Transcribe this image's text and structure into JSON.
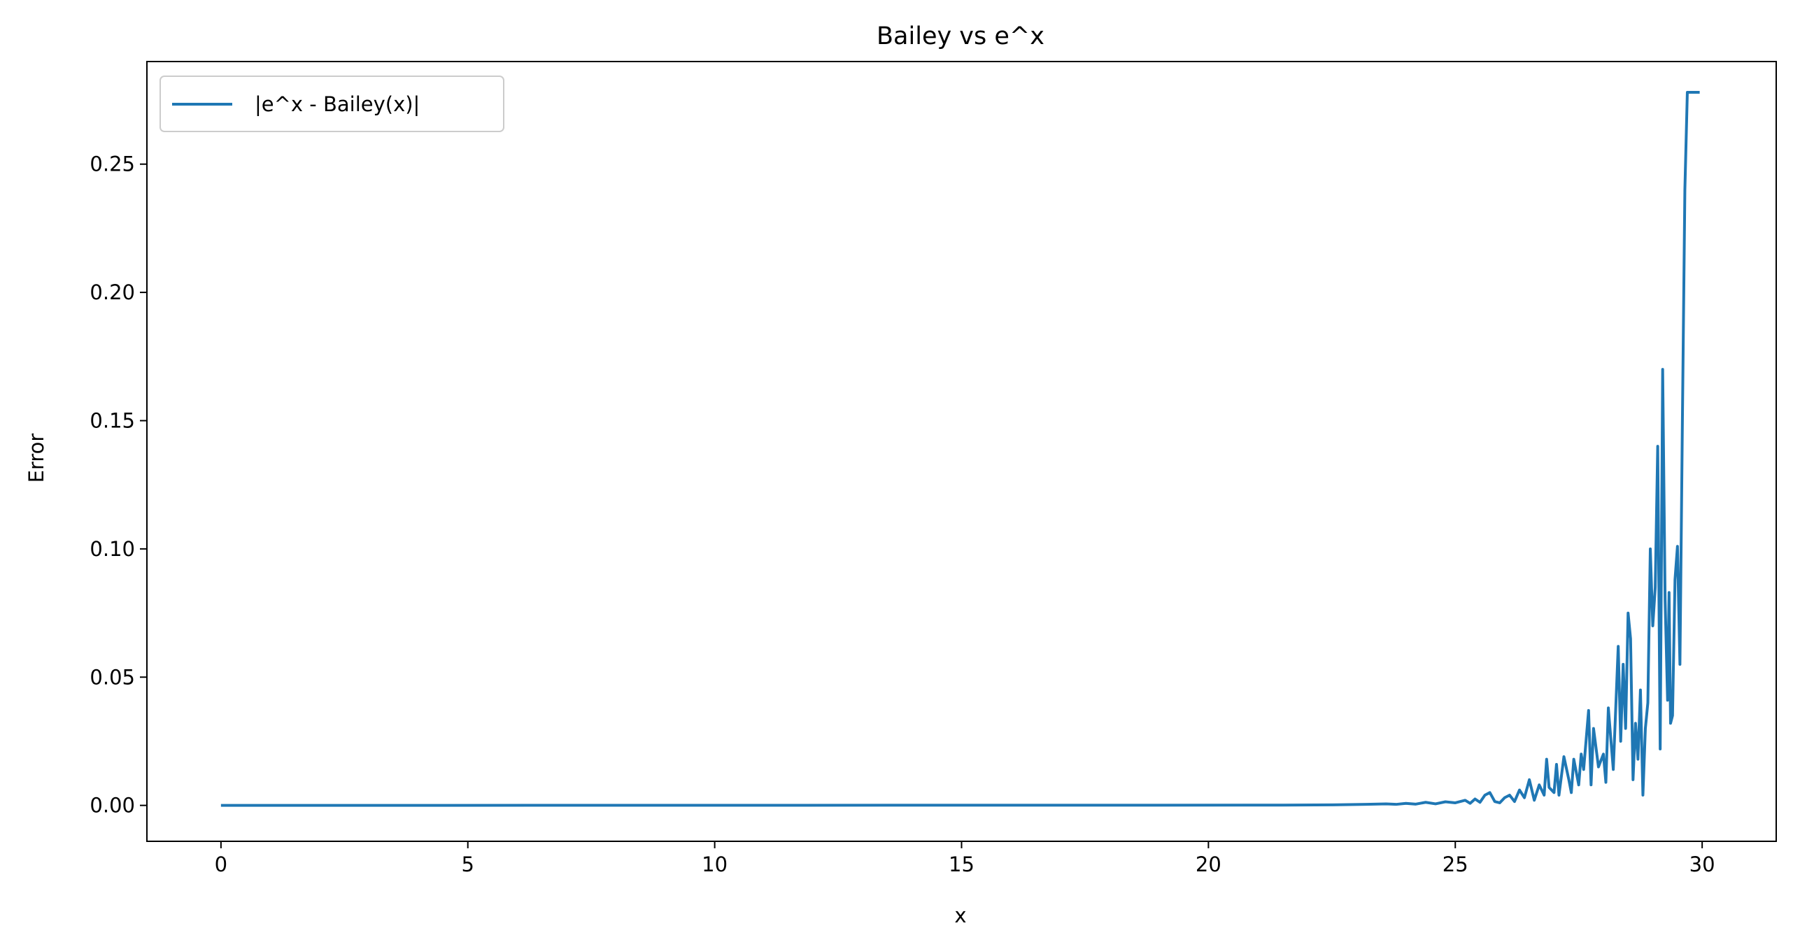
{
  "chart_data": {
    "type": "line",
    "title": "Bailey vs e^x",
    "xlabel": "x",
    "ylabel": "Error",
    "xlim": [
      -1.5,
      31.5
    ],
    "ylim": [
      -0.014,
      0.29
    ],
    "xticks": [
      0,
      5,
      10,
      15,
      20,
      25,
      30
    ],
    "xtick_labels": [
      "0",
      "5",
      "10",
      "15",
      "20",
      "25",
      "30"
    ],
    "yticks": [
      0.0,
      0.05,
      0.1,
      0.15,
      0.2,
      0.25
    ],
    "ytick_labels": [
      "0.00",
      "0.05",
      "0.10",
      "0.15",
      "0.20",
      "0.25"
    ],
    "grid": false,
    "legend_position": "upper-left",
    "series_color": "#1f77b4",
    "series": [
      {
        "name": "|e^x - Bailey(x)|",
        "x": [
          0,
          21.5,
          22.5,
          23.2,
          23.6,
          23.8,
          24.0,
          24.2,
          24.4,
          24.6,
          24.8,
          25.0,
          25.2,
          25.3,
          25.4,
          25.5,
          25.6,
          25.7,
          25.8,
          25.9,
          26.0,
          26.1,
          26.2,
          26.3,
          26.4,
          26.5,
          26.55,
          26.6,
          26.7,
          26.8,
          26.85,
          26.9,
          27.0,
          27.05,
          27.1,
          27.2,
          27.3,
          27.35,
          27.4,
          27.5,
          27.55,
          27.6,
          27.7,
          27.75,
          27.8,
          27.9,
          28.0,
          28.05,
          28.1,
          28.2,
          28.3,
          28.35,
          28.4,
          28.45,
          28.5,
          28.55,
          28.6,
          28.65,
          28.7,
          28.75,
          28.8,
          28.85,
          28.9,
          28.95,
          29.0,
          29.05,
          29.1,
          29.15,
          29.2,
          29.25,
          29.3,
          29.33,
          29.36,
          29.4,
          29.45,
          29.5,
          29.55,
          29.6,
          29.65,
          29.7,
          29.75,
          29.8,
          29.85,
          29.9,
          29.95
        ],
        "y": [
          0.0,
          0.0001,
          0.0002,
          0.0004,
          0.0006,
          0.0004,
          0.0008,
          0.0005,
          0.0012,
          0.0006,
          0.0014,
          0.001,
          0.002,
          0.0008,
          0.0025,
          0.0012,
          0.004,
          0.005,
          0.0015,
          0.001,
          0.003,
          0.004,
          0.0015,
          0.006,
          0.003,
          0.01,
          0.006,
          0.002,
          0.008,
          0.004,
          0.018,
          0.007,
          0.005,
          0.016,
          0.004,
          0.019,
          0.01,
          0.005,
          0.018,
          0.008,
          0.02,
          0.014,
          0.037,
          0.008,
          0.03,
          0.015,
          0.02,
          0.009,
          0.038,
          0.014,
          0.062,
          0.025,
          0.055,
          0.03,
          0.075,
          0.065,
          0.01,
          0.032,
          0.018,
          0.045,
          0.004,
          0.03,
          0.04,
          0.1,
          0.07,
          0.085,
          0.14,
          0.022,
          0.17,
          0.08,
          0.041,
          0.083,
          0.032,
          0.035,
          0.088,
          0.101,
          0.055,
          0.15,
          0.24,
          0.278,
          0.278,
          0.278,
          0.278,
          0.278,
          0.278
        ]
      }
    ]
  }
}
